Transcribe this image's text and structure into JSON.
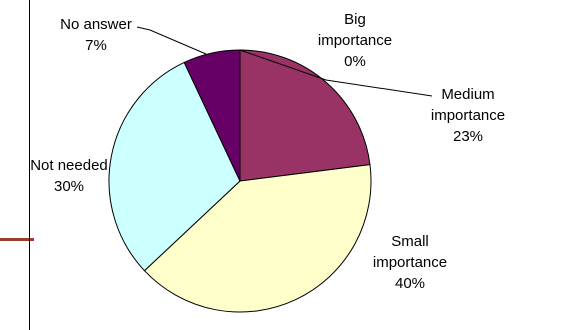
{
  "chart_data": {
    "type": "pie",
    "title": "",
    "slices": [
      {
        "label_lines": [
          "Big",
          "importance"
        ],
        "value_label": "0%",
        "value": 0,
        "color": "#993366"
      },
      {
        "label_lines": [
          "Medium",
          "importance"
        ],
        "value_label": "23%",
        "value": 23,
        "color": "#993366"
      },
      {
        "label_lines": [
          "Small",
          "importance"
        ],
        "value_label": "40%",
        "value": 40,
        "color": "#FFFFCC"
      },
      {
        "label_lines": [
          "Not needed"
        ],
        "value_label": "30%",
        "value": 30,
        "color": "#CCFFFF"
      },
      {
        "label_lines": [
          "No answer"
        ],
        "value_label": "7%",
        "value": 7,
        "color": "#660066"
      }
    ],
    "start_angle_deg": 0,
    "direction": "clockwise",
    "outline_color": "#000000",
    "accent_color": "#9c3b33"
  }
}
